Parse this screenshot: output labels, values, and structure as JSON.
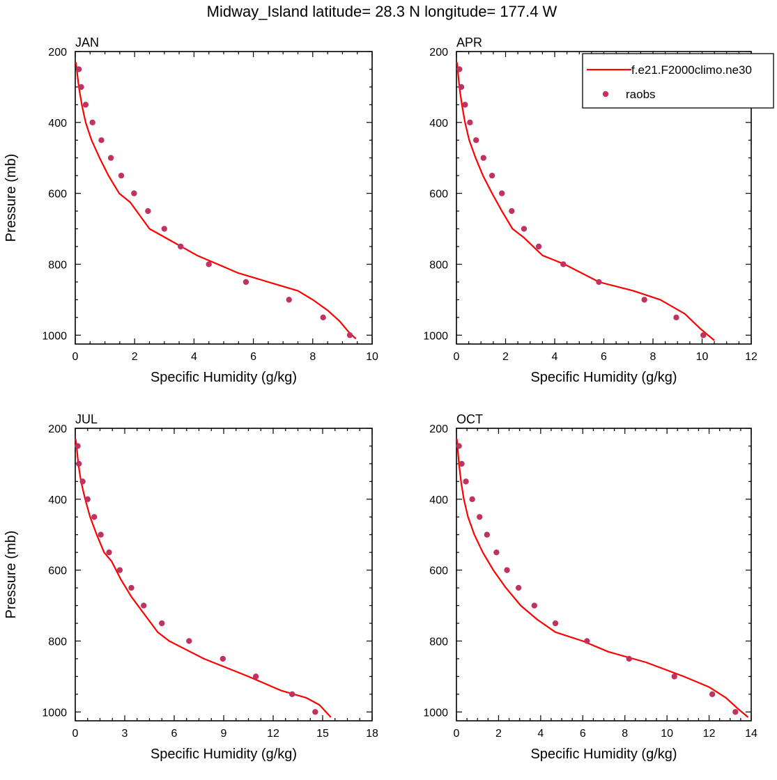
{
  "figure_title": "Midway_Island  latitude= 28.3 N longitude= 177.4 W",
  "legend": {
    "model_label": "f.e21.F2000climo.ne30",
    "obs_label": "raobs",
    "model_color": "#ff0000",
    "obs_color": "#c03361"
  },
  "chart_data": [
    {
      "type": "line",
      "panel": "top-left",
      "title": "JAN",
      "xlabel": "Specific Humidity (g/kg)",
      "ylabel": "Pressure (mb)",
      "xlim": [
        0,
        10
      ],
      "ylim": [
        200,
        1025
      ],
      "y_inverted": true,
      "xticks": [
        0,
        2,
        4,
        6,
        8,
        10
      ],
      "yticks": [
        200,
        400,
        600,
        800,
        1000
      ],
      "series": [
        {
          "name": "f.e21.F2000climo.ne30",
          "style": "line",
          "x": [
            0.02,
            0.05,
            0.12,
            0.22,
            0.35,
            0.55,
            0.82,
            1.12,
            1.48,
            1.85,
            2.5,
            4.1,
            5.5,
            6.5,
            7.5,
            8.0,
            8.5,
            8.9,
            9.2,
            9.45
          ],
          "y": [
            230,
            250,
            300,
            350,
            400,
            450,
            500,
            550,
            600,
            625,
            700,
            775,
            825,
            850,
            875,
            900,
            930,
            960,
            990,
            1010
          ]
        },
        {
          "name": "raobs",
          "style": "markers",
          "x": [
            0.12,
            0.2,
            0.35,
            0.58,
            0.88,
            1.2,
            1.55,
            1.98,
            2.45,
            3.0,
            3.55,
            4.5,
            5.75,
            7.2,
            8.35,
            9.25
          ],
          "y": [
            250,
            300,
            350,
            400,
            450,
            500,
            550,
            600,
            650,
            700,
            750,
            800,
            850,
            900,
            950,
            1000
          ]
        }
      ]
    },
    {
      "type": "line",
      "panel": "top-right",
      "title": "APR",
      "xlabel": "Specific Humidity (g/kg)",
      "ylabel": "",
      "xlim": [
        0,
        12
      ],
      "ylim": [
        200,
        1025
      ],
      "y_inverted": true,
      "xticks": [
        0,
        2,
        4,
        6,
        8,
        10,
        12
      ],
      "yticks": [
        200,
        400,
        600,
        800,
        1000
      ],
      "series": [
        {
          "name": "f.e21.F2000climo.ne30",
          "style": "line",
          "x": [
            0.02,
            0.05,
            0.12,
            0.22,
            0.35,
            0.52,
            0.78,
            1.08,
            1.45,
            1.85,
            2.28,
            2.75,
            3.5,
            4.4,
            5.8,
            7.2,
            8.3,
            9.3,
            9.9,
            10.5
          ],
          "y": [
            230,
            250,
            300,
            350,
            400,
            450,
            500,
            550,
            600,
            650,
            700,
            725,
            775,
            800,
            850,
            875,
            900,
            940,
            980,
            1015
          ]
        },
        {
          "name": "raobs",
          "style": "markers",
          "x": [
            0.12,
            0.2,
            0.35,
            0.55,
            0.8,
            1.1,
            1.45,
            1.85,
            2.25,
            2.75,
            3.35,
            4.35,
            5.8,
            7.65,
            8.95,
            10.05
          ],
          "y": [
            250,
            300,
            350,
            400,
            450,
            500,
            550,
            600,
            650,
            700,
            750,
            800,
            850,
            900,
            950,
            1000
          ]
        }
      ]
    },
    {
      "type": "line",
      "panel": "bottom-left",
      "title": "JUL",
      "xlabel": "Specific Humidity (g/kg)",
      "ylabel": "Pressure (mb)",
      "xlim": [
        0,
        18
      ],
      "ylim": [
        200,
        1025
      ],
      "y_inverted": true,
      "xticks": [
        0,
        3,
        6,
        9,
        12,
        15,
        18
      ],
      "yticks": [
        200,
        400,
        600,
        800,
        1000
      ],
      "series": [
        {
          "name": "f.e21.F2000climo.ne30",
          "style": "line",
          "x": [
            0.02,
            0.08,
            0.18,
            0.35,
            0.6,
            0.9,
            1.3,
            1.75,
            2.2,
            2.75,
            3.4,
            4.2,
            5.0,
            5.7,
            7.8,
            10.5,
            12.5,
            14.0,
            14.8,
            15.5
          ],
          "y": [
            230,
            250,
            300,
            350,
            400,
            450,
            500,
            550,
            575,
            625,
            675,
            725,
            775,
            800,
            850,
            900,
            940,
            960,
            980,
            1015
          ]
        },
        {
          "name": "raobs",
          "style": "markers",
          "x": [
            0.15,
            0.22,
            0.45,
            0.75,
            1.15,
            1.55,
            2.05,
            2.7,
            3.4,
            4.15,
            5.25,
            6.9,
            8.95,
            10.95,
            13.15,
            14.55
          ],
          "y": [
            250,
            300,
            350,
            400,
            450,
            500,
            550,
            600,
            650,
            700,
            750,
            800,
            850,
            900,
            950,
            1000
          ]
        }
      ]
    },
    {
      "type": "line",
      "panel": "bottom-right",
      "title": "OCT",
      "xlabel": "Specific Humidity (g/kg)",
      "ylabel": "",
      "xlim": [
        0,
        14
      ],
      "ylim": [
        200,
        1025
      ],
      "y_inverted": true,
      "xticks": [
        0,
        2,
        4,
        6,
        8,
        10,
        12,
        14
      ],
      "yticks": [
        200,
        400,
        600,
        800,
        1000
      ],
      "series": [
        {
          "name": "f.e21.F2000climo.ne30",
          "style": "line",
          "x": [
            0.02,
            0.05,
            0.12,
            0.22,
            0.35,
            0.55,
            0.85,
            1.25,
            1.75,
            2.35,
            3.05,
            3.85,
            4.7,
            6.0,
            7.2,
            9.0,
            10.8,
            12.0,
            12.8,
            13.35,
            13.85
          ],
          "y": [
            230,
            250,
            300,
            350,
            400,
            450,
            500,
            550,
            600,
            650,
            700,
            740,
            775,
            800,
            830,
            860,
            900,
            930,
            960,
            990,
            1015
          ]
        },
        {
          "name": "raobs",
          "style": "markers",
          "x": [
            0.12,
            0.25,
            0.45,
            0.75,
            1.1,
            1.45,
            1.9,
            2.4,
            2.95,
            3.7,
            4.7,
            6.2,
            8.2,
            10.35,
            12.15,
            13.25
          ],
          "y": [
            250,
            300,
            350,
            400,
            450,
            500,
            550,
            600,
            650,
            700,
            750,
            800,
            850,
            900,
            950,
            1000
          ]
        }
      ]
    }
  ]
}
